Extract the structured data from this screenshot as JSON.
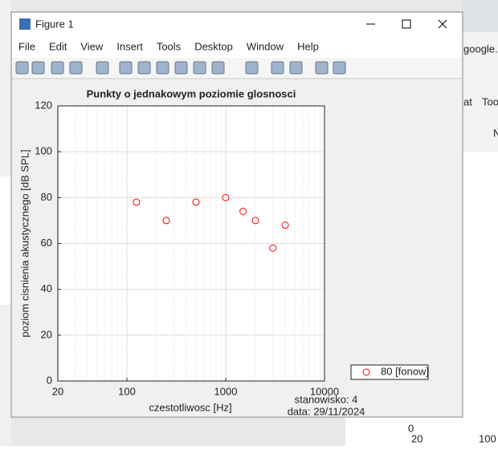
{
  "window": {
    "title": "Figure 1",
    "menu": [
      "File",
      "Edit",
      "View",
      "Insert",
      "Tools",
      "Desktop",
      "Window",
      "Help"
    ]
  },
  "background": {
    "texts": [
      "google.",
      "at",
      "Too",
      "N",
      "0",
      "20",
      "100"
    ]
  },
  "chart_data": {
    "type": "scatter",
    "title": "Punkty o jednakowym poziomie glosnosci",
    "xlabel": "czestotliwosc [Hz]",
    "ylabel": "poziom cisnienia akustycznego [dB SPL]",
    "x": [
      125,
      250,
      500,
      1000,
      1500,
      2000,
      3000,
      4000
    ],
    "series": [
      {
        "name": "80 [fonow]",
        "color": "#ff0000",
        "values": [
          78,
          70,
          78,
          80,
          74,
          70,
          58,
          68
        ]
      }
    ],
    "xlim": [
      20,
      10000
    ],
    "xticks": [
      20,
      100,
      1000,
      10000
    ],
    "xscale": "log",
    "ylim": [
      0,
      120
    ],
    "yticks": [
      0,
      20,
      40,
      60,
      80,
      100,
      120
    ],
    "grid": true,
    "minor_grid": true,
    "legend": "southeastoutside",
    "annotations": [
      "stanowisko: 4",
      "data: 29/11/2024"
    ]
  }
}
